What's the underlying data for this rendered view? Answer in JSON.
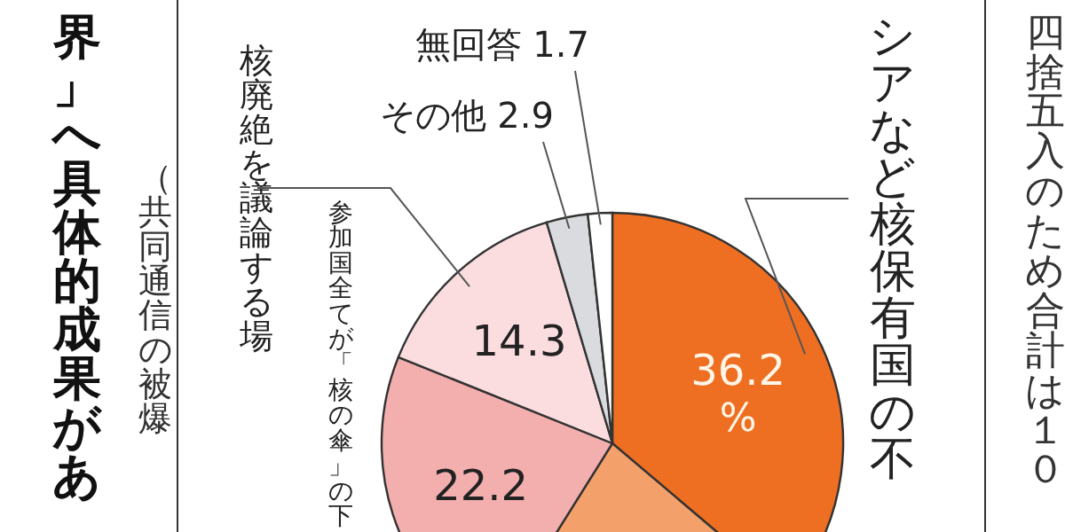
{
  "chart_data": {
    "type": "pie",
    "title": "界」へ具体的成果があ",
    "categories": [
      "シアなど核保有国の不",
      null,
      "参加国全てが「核の傘」の下",
      "核廃絶を議論する場",
      "その他",
      "無回答"
    ],
    "values": [
      36.2,
      22.7,
      22.2,
      14.3,
      2.9,
      1.7
    ],
    "colors": [
      "#ef6f22",
      "#f4a06a",
      "#f3aeae",
      "#fbdde0",
      "#d9dbde",
      "#ffffff"
    ],
    "value_labels": [
      "36.2%",
      null,
      "22.2",
      "14.3",
      "2.9",
      "1.7"
    ],
    "annotations": [
      "（共同通信の被爆",
      "四捨五入のため合計は１０"
    ]
  }
}
